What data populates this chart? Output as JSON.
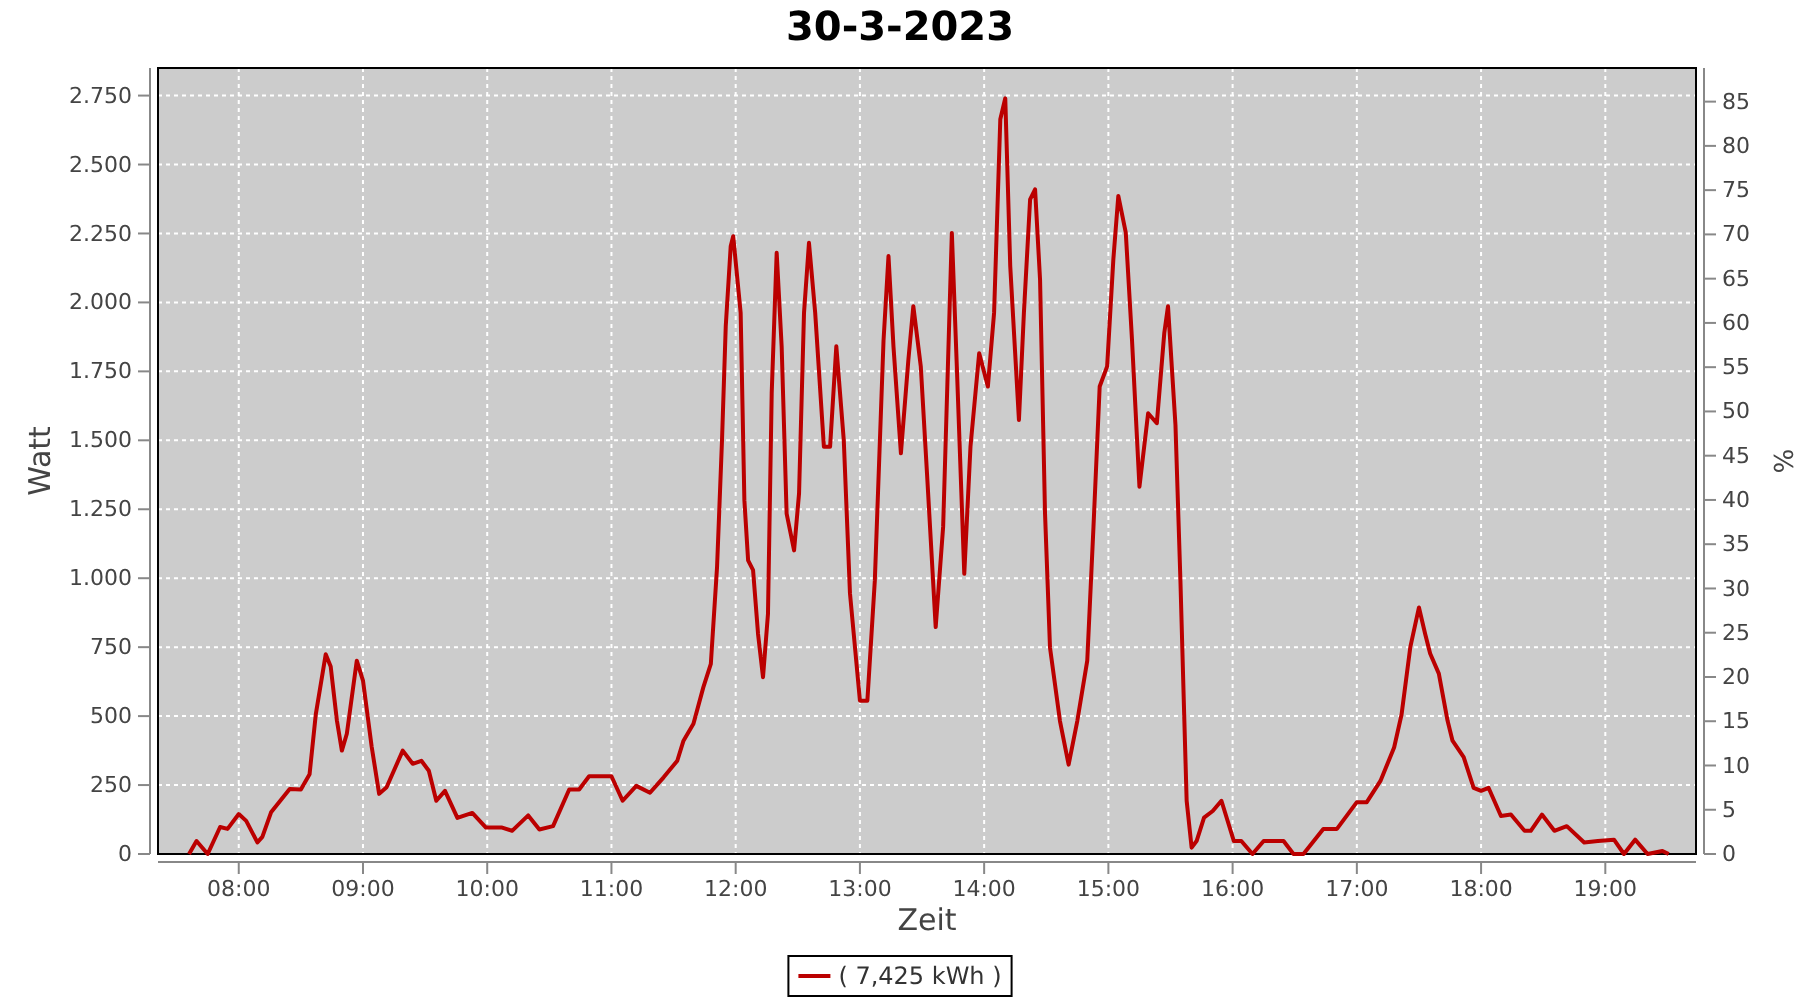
{
  "chart_data": {
    "type": "line",
    "title": "30-3-2023",
    "xlabel": "Zeit",
    "ylabel": "Watt",
    "y2label": "%",
    "xlim": [
      7.35,
      19.73
    ],
    "xticks": [
      {
        "value": 8,
        "label": "08:00"
      },
      {
        "value": 9,
        "label": "09:00"
      },
      {
        "value": 10,
        "label": "10:00"
      },
      {
        "value": 11,
        "label": "11:00"
      },
      {
        "value": 12,
        "label": "12:00"
      },
      {
        "value": 13,
        "label": "13:00"
      },
      {
        "value": 14,
        "label": "14:00"
      },
      {
        "value": 15,
        "label": "15:00"
      },
      {
        "value": 16,
        "label": "16:00"
      },
      {
        "value": 17,
        "label": "17:00"
      },
      {
        "value": 18,
        "label": "18:00"
      },
      {
        "value": 19,
        "label": "19:00"
      }
    ],
    "ylim": [
      0,
      2850
    ],
    "yticks": [
      0,
      250,
      500,
      750,
      {
        "value": 1000,
        "label": "1.000"
      },
      {
        "value": 1250,
        "label": "1.250"
      },
      {
        "value": 1500,
        "label": "1.500"
      },
      {
        "value": 1750,
        "label": "1.750"
      },
      {
        "value": 2000,
        "label": "2.000"
      },
      {
        "value": 2250,
        "label": "2.250"
      },
      {
        "value": 2500,
        "label": "2.500"
      },
      {
        "value": 2750,
        "label": "2.750"
      }
    ],
    "y2lim": [
      0,
      88.8
    ],
    "y2ticks": [
      0,
      5,
      10,
      15,
      20,
      25,
      30,
      35,
      40,
      45,
      50,
      55,
      60,
      65,
      70,
      75,
      80,
      85
    ],
    "grid": true,
    "legend": "bottom",
    "marker": "none",
    "line_style": "solid",
    "series": [
      {
        "name": "( 7,425 kWh )",
        "color": "#bb0000",
        "x": [
          7.6,
          7.66,
          7.75,
          7.85,
          7.91,
          8.0,
          8.06,
          8.15,
          8.19,
          8.26,
          8.41,
          8.5,
          8.57,
          8.62,
          8.7,
          8.74,
          8.79,
          8.83,
          8.87,
          8.95,
          9.0,
          9.07,
          9.13,
          9.19,
          9.32,
          9.4,
          9.47,
          9.53,
          9.59,
          9.66,
          9.76,
          9.88,
          9.99,
          10.12,
          10.2,
          10.33,
          10.42,
          10.53,
          10.66,
          10.74,
          10.82,
          11.0,
          11.09,
          11.2,
          11.31,
          11.42,
          11.53,
          11.58,
          11.66,
          11.74,
          11.8,
          11.85,
          11.89,
          11.92,
          11.96,
          11.98,
          12.04,
          12.07,
          12.1,
          12.14,
          12.18,
          12.22,
          12.26,
          12.29,
          12.33,
          12.37,
          12.41,
          12.47,
          12.51,
          12.55,
          12.59,
          12.64,
          12.71,
          12.76,
          12.81,
          12.87,
          12.92,
          13.0,
          13.06,
          13.12,
          13.19,
          13.23,
          13.27,
          13.33,
          13.39,
          13.43,
          13.49,
          13.54,
          13.61,
          13.67,
          13.74,
          13.78,
          13.84,
          13.89,
          13.96,
          14.03,
          14.08,
          14.13,
          14.17,
          14.21,
          14.28,
          14.32,
          14.37,
          14.41,
          14.45,
          14.49,
          14.53,
          14.61,
          14.68,
          14.75,
          14.83,
          14.88,
          14.93,
          14.99,
          15.04,
          15.08,
          15.14,
          15.19,
          15.25,
          15.32,
          15.39,
          15.45,
          15.48,
          15.54,
          15.58,
          15.61,
          15.63,
          15.67,
          15.71,
          15.77,
          15.84,
          15.91,
          16.01,
          16.07,
          16.16,
          16.25,
          16.41,
          16.49,
          16.57,
          16.73,
          16.84,
          17.0,
          17.08,
          17.19,
          17.3,
          17.36,
          17.43,
          17.5,
          17.55,
          17.59,
          17.66,
          17.73,
          17.77,
          17.86,
          17.94,
          18.0,
          18.06,
          18.16,
          18.24,
          18.35,
          18.4,
          18.49,
          18.59,
          18.69,
          18.83,
          18.94,
          19.07,
          19.15,
          19.24,
          19.34,
          19.46,
          19.51
        ],
        "values": [
          0,
          47,
          0,
          98,
          91,
          145,
          120,
          42,
          62,
          151,
          236,
          234,
          289,
          506,
          724,
          680,
          484,
          375,
          436,
          701,
          629,
          389,
          218,
          242,
          375,
          327,
          338,
          302,
          193,
          229,
          131,
          149,
          96,
          96,
          84,
          140,
          89,
          101,
          234,
          234,
          282,
          282,
          193,
          247,
          222,
          278,
          338,
          411,
          472,
          605,
          689,
          1040,
          1501,
          1913,
          2204,
          2240,
          1962,
          1283,
          1065,
          1029,
          798,
          641,
          871,
          1671,
          2180,
          1841,
          1234,
          1101,
          1307,
          1962,
          2216,
          1962,
          1477,
          1477,
          1841,
          1501,
          945,
          556,
          556,
          991,
          1861,
          2168,
          1841,
          1453,
          1792,
          1986,
          1768,
          1380,
          823,
          1187,
          2252,
          1768,
          1016,
          1477,
          1816,
          1695,
          1962,
          2664,
          2740,
          2132,
          1574,
          1962,
          2374,
          2410,
          2083,
          1235,
          749,
          483,
          324,
          483,
          701,
          1186,
          1695,
          1768,
          2156,
          2386,
          2253,
          1865,
          1332,
          1598,
          1562,
          1889,
          1986,
          1555,
          990,
          508,
          193,
          23,
          47,
          132,
          156,
          193,
          47,
          47,
          0,
          47,
          47,
          0,
          0,
          91,
          91,
          188,
          188,
          265,
          386,
          506,
          749,
          894,
          798,
          727,
          654,
          484,
          411,
          351,
          240,
          229,
          240,
          138,
          143,
          84,
          84,
          143,
          84,
          101,
          42,
          47,
          52,
          0,
          52,
          0,
          11,
          0
        ]
      }
    ]
  }
}
